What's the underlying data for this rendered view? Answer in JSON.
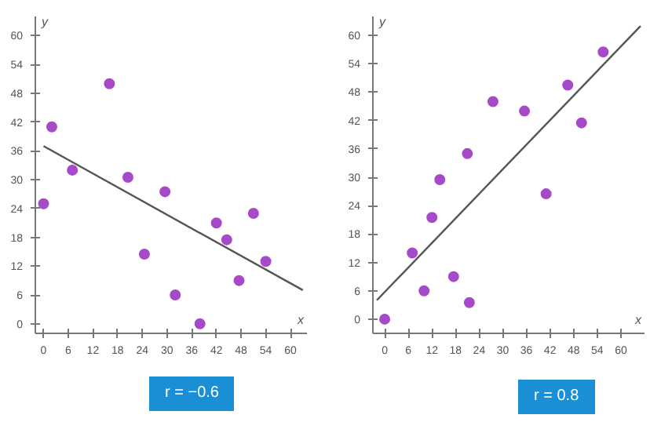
{
  "chart_data": [
    {
      "type": "scatter",
      "xlabel": "x",
      "ylabel": "y",
      "xlim": [
        -2,
        64
      ],
      "ylim": [
        -2,
        64
      ],
      "xticks": [
        0,
        6,
        12,
        18,
        24,
        30,
        36,
        42,
        48,
        54,
        60
      ],
      "yticks": [
        0,
        6,
        12,
        18,
        24,
        30,
        36,
        42,
        48,
        54,
        60
      ],
      "annotations": [
        "r = −0.6"
      ],
      "series": [
        {
          "type": "scatter",
          "marker": "circle",
          "color": "#a64ac9",
          "x": [
            0,
            2,
            7,
            16,
            20.5,
            24.5,
            29.5,
            32,
            38,
            42,
            44.5,
            47.5,
            51,
            54
          ],
          "values": [
            25,
            41,
            32,
            50,
            30.5,
            14.5,
            27.5,
            6,
            0,
            21,
            17.5,
            9,
            23,
            13
          ]
        },
        {
          "type": "line",
          "color": "#555555",
          "x": [
            0,
            63
          ],
          "values": [
            37,
            7
          ]
        }
      ]
    },
    {
      "type": "scatter",
      "xlabel": "x",
      "ylabel": "y",
      "xlim": [
        -3,
        66
      ],
      "ylim": [
        -3,
        64
      ],
      "xticks": [
        0,
        6,
        12,
        18,
        24,
        30,
        36,
        42,
        48,
        54,
        60
      ],
      "yticks": [
        0,
        6,
        12,
        18,
        24,
        30,
        36,
        42,
        48,
        54,
        60
      ],
      "annotations": [
        "r = 0.8"
      ],
      "series": [
        {
          "type": "scatter",
          "marker": "circle",
          "color": "#a64ac9",
          "x": [
            0,
            7,
            10,
            12,
            14,
            17.5,
            21,
            21.5,
            27.5,
            35.5,
            41,
            46.5,
            50,
            55.5
          ],
          "values": [
            0,
            14,
            6,
            21.5,
            29.5,
            9,
            35,
            3.5,
            46,
            44,
            26.5,
            49.5,
            41.5,
            56.5
          ]
        },
        {
          "type": "line",
          "color": "#555555",
          "x": [
            -2,
            65
          ],
          "values": [
            4,
            62
          ]
        }
      ]
    }
  ]
}
